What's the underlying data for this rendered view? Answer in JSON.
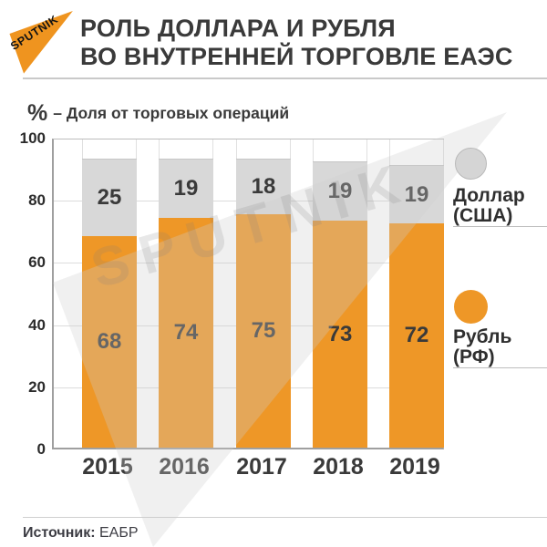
{
  "header": {
    "logo_text": "SPUTNIK",
    "title_line1": "РОЛЬ ДОЛЛАРА И РУБЛЯ",
    "title_line2": "ВО ВНУТРЕННЕЙ ТОРГОВЛЕ ЕАЭС"
  },
  "subtitle": {
    "unit": "%",
    "label": "– Доля от торговых операций"
  },
  "chart_data": {
    "type": "bar",
    "stacked": true,
    "title": "РОЛЬ ДОЛЛАРА И РУБЛЯ ВО ВНУТРЕННЕЙ ТОРГОВЛЕ ЕАЭС",
    "unit_note": "% – Доля от торговых операций",
    "categories": [
      "2015",
      "2016",
      "2017",
      "2018",
      "2019"
    ],
    "series": [
      {
        "name": "Рубль (РФ)",
        "color": "#ee9727",
        "values": [
          68,
          74,
          75,
          73,
          72
        ]
      },
      {
        "name": "Доллар (США)",
        "color": "#d8d8d8",
        "values": [
          25,
          19,
          18,
          19,
          19
        ]
      }
    ],
    "ylim": [
      0,
      100
    ],
    "yticks": [
      0,
      20,
      40,
      60,
      80,
      100
    ],
    "grid": true,
    "legend_position": "right",
    "source": "ЕАБР"
  },
  "legend": {
    "items": [
      {
        "line1": "Доллар",
        "line2": "(США)",
        "color": "#d5d5d5"
      },
      {
        "line1": "Рубль",
        "line2": "(РФ)",
        "color": "#ee9727"
      }
    ]
  },
  "watermark": "SPUTNIK",
  "footer": {
    "source_label": "Источник:",
    "source_value": "ЕАБР"
  },
  "colors": {
    "accent_orange": "#ee9727",
    "bar_gray": "#d8d8d8",
    "text_dark": "#3a3a3a"
  }
}
